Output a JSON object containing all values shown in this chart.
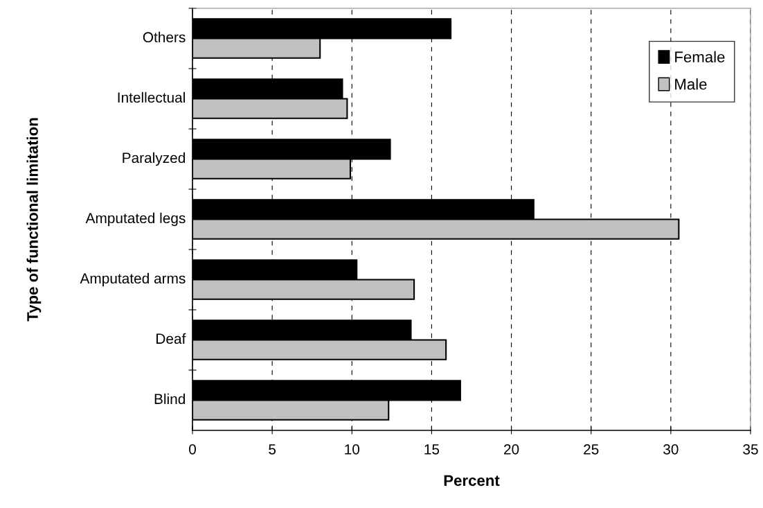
{
  "chart_data": {
    "type": "bar",
    "orientation": "horizontal",
    "xlabel": "Percent",
    "ylabel": "Type of functional limitation",
    "categories": [
      "Others",
      "Intellectual",
      "Paralyzed",
      "Amputated legs",
      "Amputated arms",
      "Deaf",
      "Blind"
    ],
    "series": [
      {
        "name": "Female",
        "color": "#000000",
        "values": [
          16.2,
          9.4,
          12.4,
          21.4,
          10.3,
          13.7,
          16.8
        ]
      },
      {
        "name": "Male",
        "color": "#c0c0c0",
        "values": [
          8.0,
          9.7,
          9.9,
          30.5,
          13.9,
          15.9,
          12.3
        ]
      }
    ],
    "xlim": [
      0,
      35
    ],
    "xticks": [
      0,
      5,
      10,
      15,
      20,
      25,
      30,
      35
    ],
    "grid": "x",
    "legend": "top right"
  }
}
